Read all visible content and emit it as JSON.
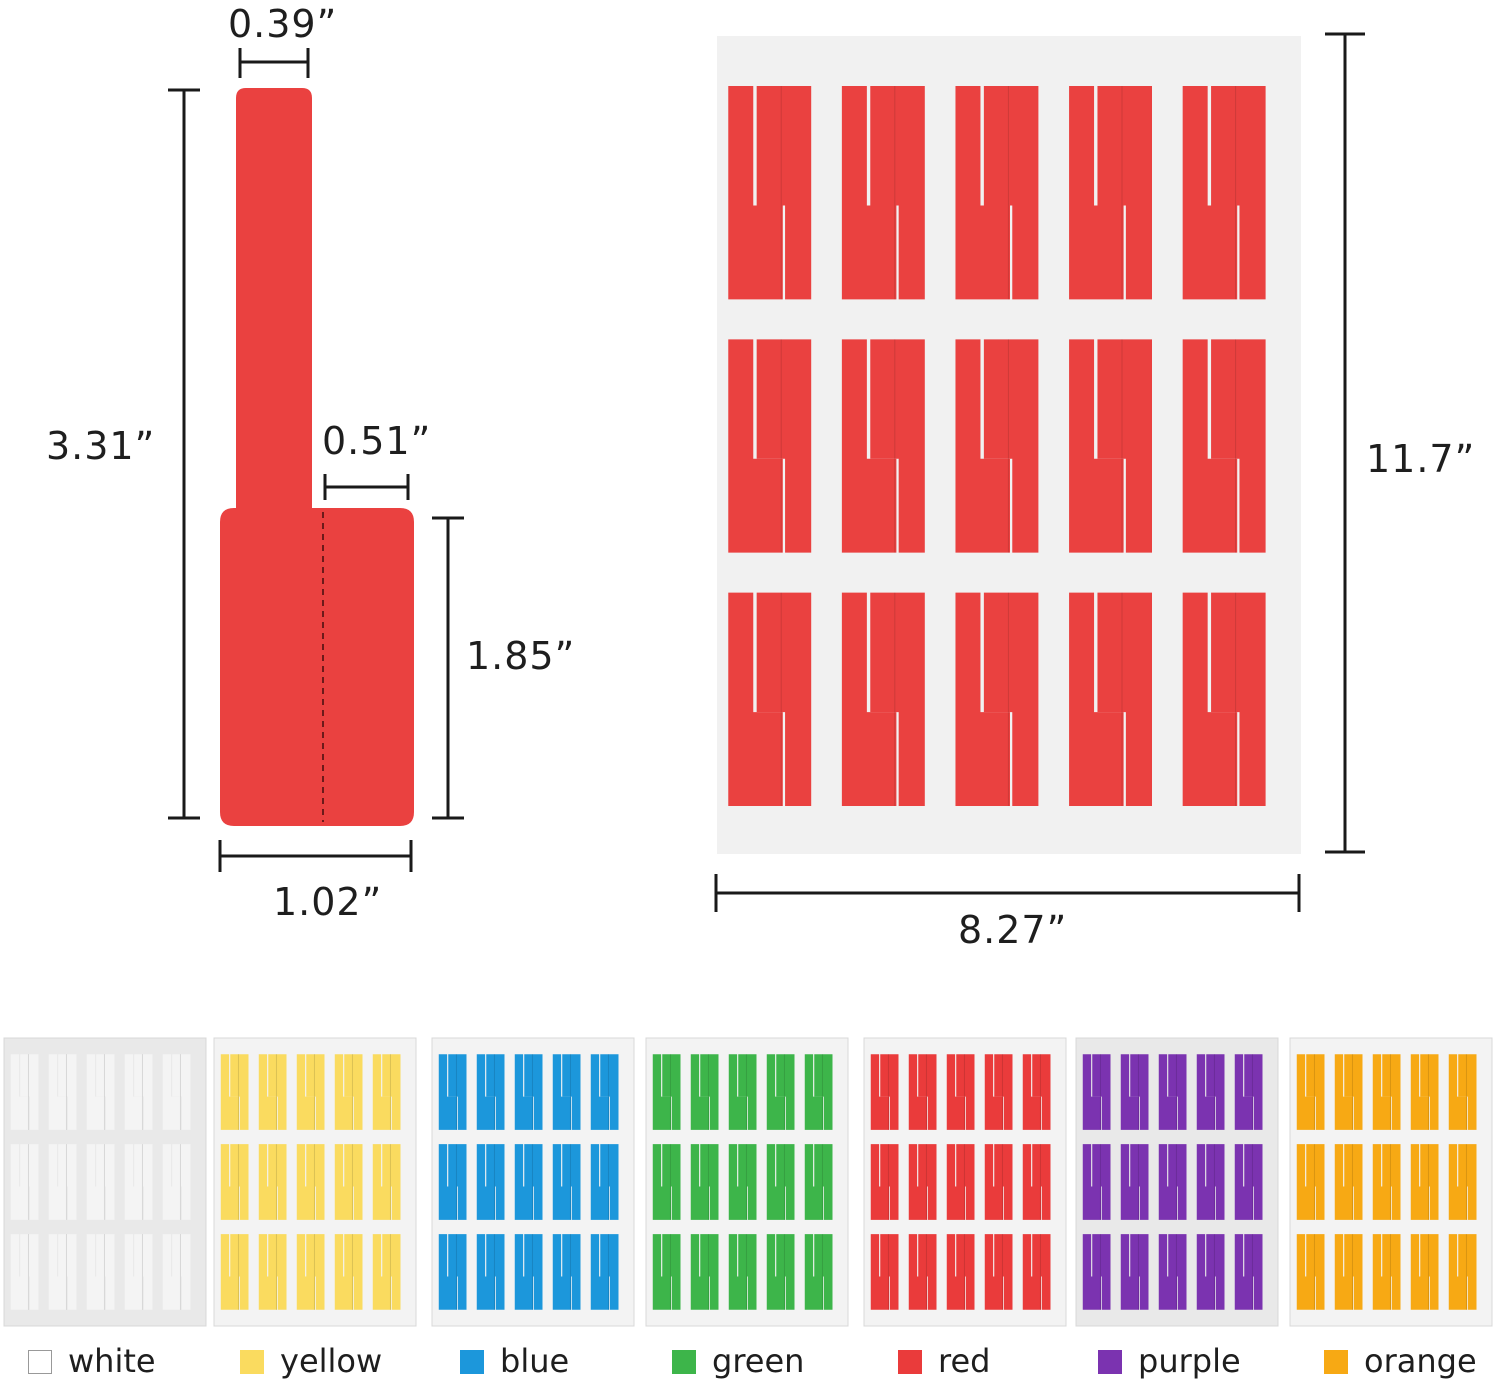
{
  "dimensions": {
    "tag_top_width": "0.39”",
    "tag_total_height": "3.31”",
    "tag_flag_half_width": "0.51”",
    "tag_flag_height": "1.85”",
    "tag_flag_width": "1.02”",
    "sheet_height": "11.7”",
    "sheet_width": "8.27”"
  },
  "colors": {
    "tag": "#ea4140",
    "sheet_bg": "#f1f1f1",
    "line": "#1a1a1a"
  },
  "variants": [
    {
      "name": "white",
      "color": "#f4f4f4",
      "sheet": "#e9e9e9"
    },
    {
      "name": "yellow",
      "color": "#fadb5f",
      "sheet": "#f3f3f3"
    },
    {
      "name": "blue",
      "color": "#1c97db",
      "sheet": "#f3f3f3"
    },
    {
      "name": "green",
      "color": "#3db54a",
      "sheet": "#f3f3f3"
    },
    {
      "name": "red",
      "color": "#ea3b3b",
      "sheet": "#f3f3f3"
    },
    {
      "name": "purple",
      "color": "#7b33b0",
      "sheet": "#e9e9e9"
    },
    {
      "name": "orange",
      "color": "#f7a914",
      "sheet": "#f3f3f3"
    }
  ]
}
